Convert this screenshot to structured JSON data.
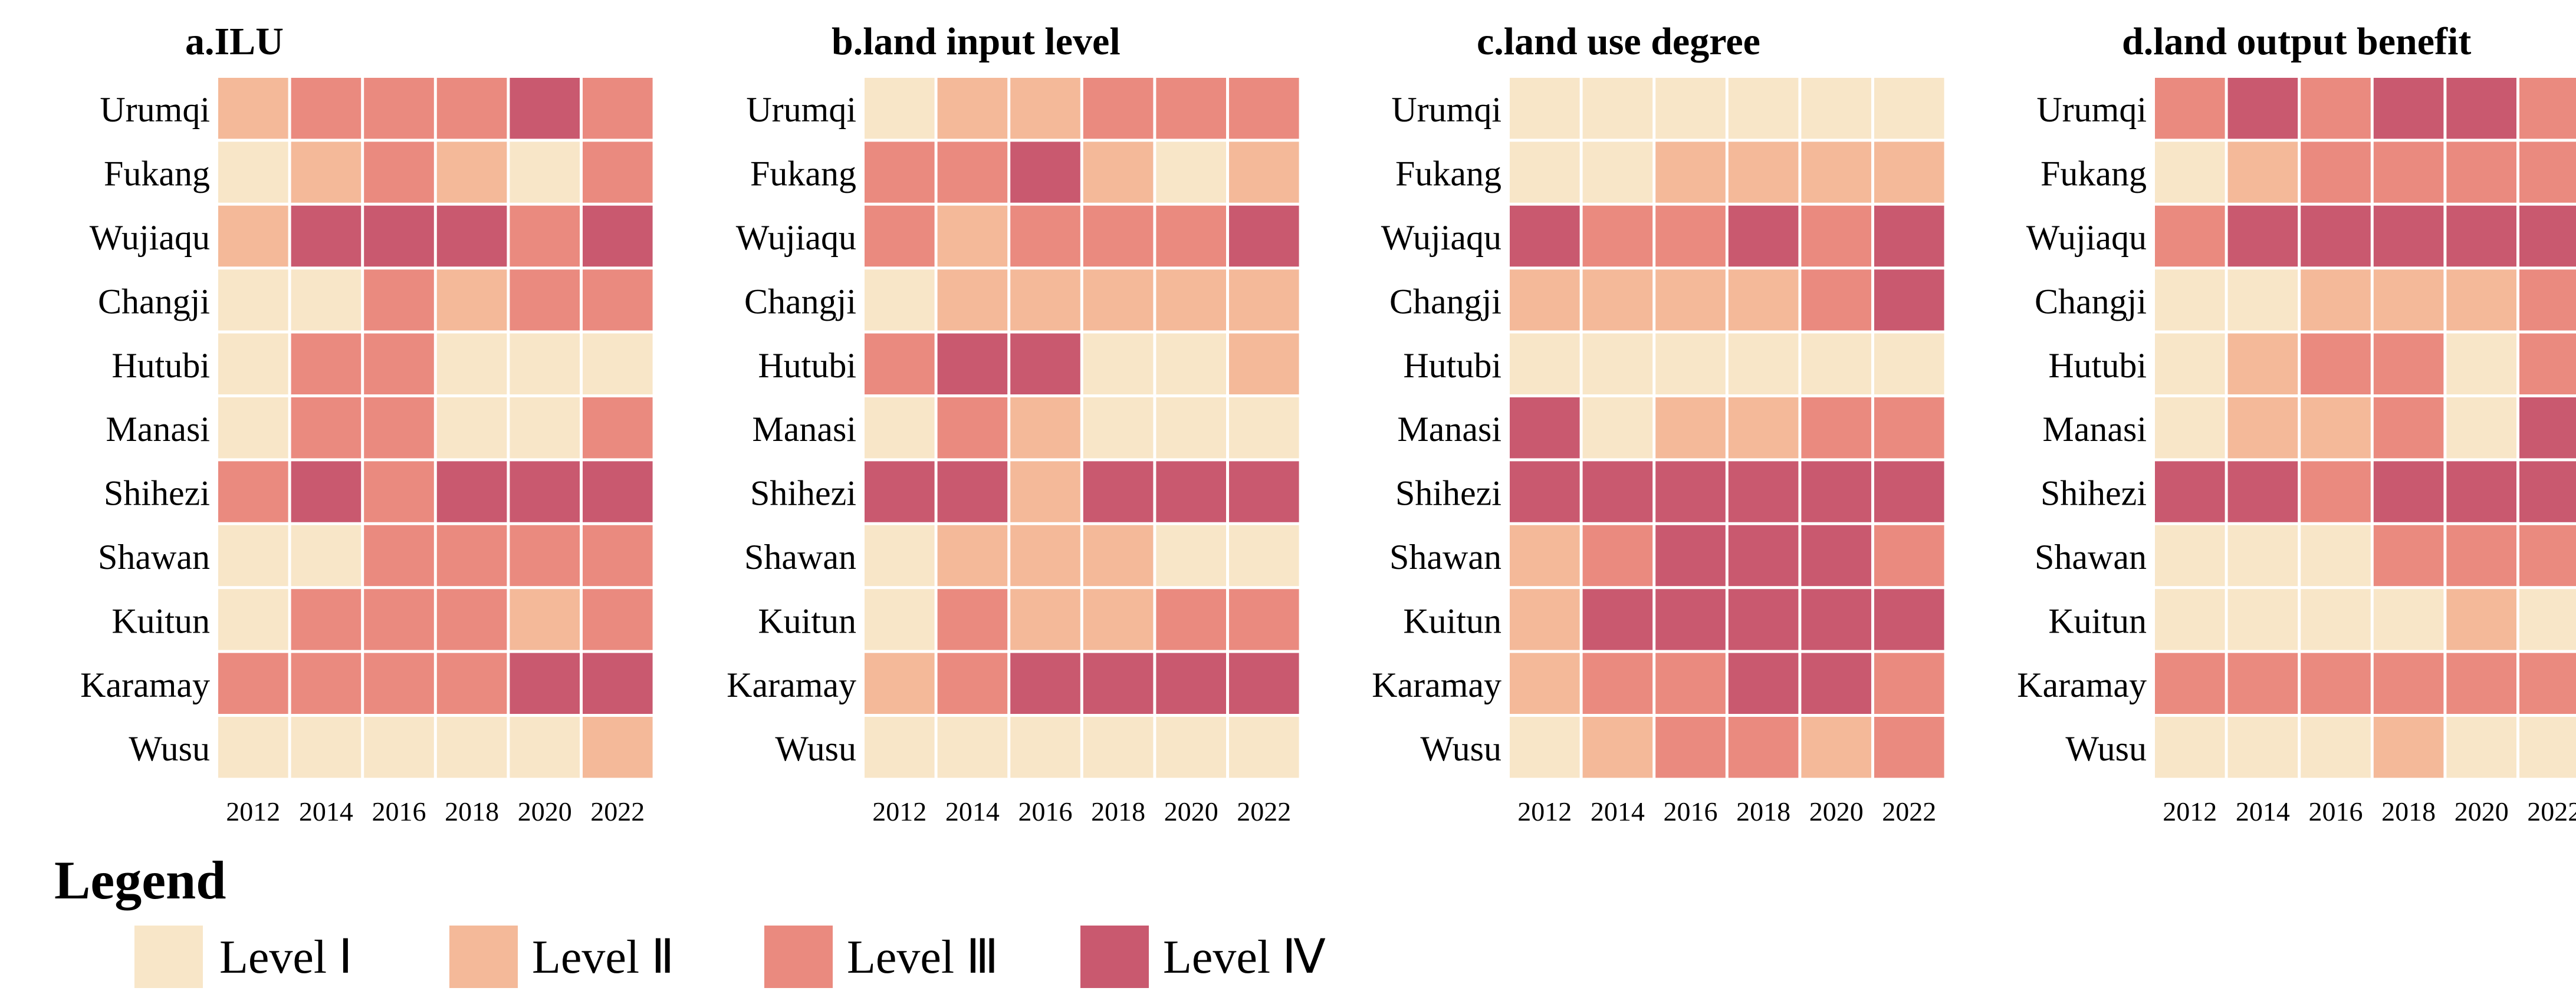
{
  "chart_data": {
    "type": "heatmap",
    "cities": [
      "Urumqi",
      "Fukang",
      "Wujiaqu",
      "Changji",
      "Hutubi",
      "Manasi",
      "Shihezi",
      "Shawan",
      "Kuitun",
      "Karamay",
      "Wusu"
    ],
    "years": [
      "2012",
      "2014",
      "2016",
      "2018",
      "2020",
      "2022"
    ],
    "level_colors": [
      "#f8e6c8",
      "#f4b999",
      "#ea8a7f",
      "#c9596f"
    ],
    "panels": [
      {
        "title": "a.ILU",
        "levels": [
          [
            2,
            3,
            3,
            3,
            4,
            3
          ],
          [
            1,
            2,
            3,
            2,
            1,
            3
          ],
          [
            2,
            4,
            4,
            4,
            3,
            4
          ],
          [
            1,
            1,
            3,
            2,
            3,
            3
          ],
          [
            1,
            3,
            3,
            1,
            1,
            1
          ],
          [
            1,
            3,
            3,
            1,
            1,
            3
          ],
          [
            3,
            4,
            3,
            4,
            4,
            4
          ],
          [
            1,
            1,
            3,
            3,
            3,
            3
          ],
          [
            1,
            3,
            3,
            3,
            2,
            3
          ],
          [
            3,
            3,
            3,
            3,
            4,
            4
          ],
          [
            1,
            1,
            1,
            1,
            1,
            2
          ]
        ]
      },
      {
        "title": "b.land input level",
        "levels": [
          [
            1,
            2,
            2,
            3,
            3,
            3
          ],
          [
            3,
            3,
            4,
            2,
            1,
            2
          ],
          [
            3,
            2,
            3,
            3,
            3,
            4
          ],
          [
            1,
            2,
            2,
            2,
            2,
            2
          ],
          [
            3,
            4,
            4,
            1,
            1,
            2
          ],
          [
            1,
            3,
            2,
            1,
            1,
            1
          ],
          [
            4,
            4,
            2,
            4,
            4,
            4
          ],
          [
            1,
            2,
            2,
            2,
            1,
            1
          ],
          [
            1,
            3,
            2,
            2,
            3,
            3
          ],
          [
            2,
            3,
            4,
            4,
            4,
            4
          ],
          [
            1,
            1,
            1,
            1,
            1,
            1
          ]
        ]
      },
      {
        "title": "c.land use degree",
        "levels": [
          [
            1,
            1,
            1,
            1,
            1,
            1
          ],
          [
            1,
            1,
            2,
            2,
            2,
            2
          ],
          [
            4,
            3,
            3,
            4,
            3,
            4
          ],
          [
            2,
            2,
            2,
            2,
            3,
            4
          ],
          [
            1,
            1,
            1,
            1,
            1,
            1
          ],
          [
            4,
            1,
            2,
            2,
            3,
            3
          ],
          [
            4,
            4,
            4,
            4,
            4,
            4
          ],
          [
            2,
            3,
            4,
            4,
            4,
            3
          ],
          [
            2,
            4,
            4,
            4,
            4,
            4
          ],
          [
            2,
            3,
            3,
            4,
            4,
            3
          ],
          [
            1,
            2,
            3,
            3,
            2,
            3
          ]
        ]
      },
      {
        "title": "d.land output benefit",
        "levels": [
          [
            3,
            4,
            3,
            4,
            4,
            3
          ],
          [
            1,
            2,
            3,
            3,
            3,
            3
          ],
          [
            3,
            4,
            4,
            4,
            4,
            4
          ],
          [
            1,
            1,
            2,
            2,
            2,
            3
          ],
          [
            1,
            2,
            3,
            3,
            1,
            3
          ],
          [
            1,
            2,
            2,
            3,
            1,
            4
          ],
          [
            4,
            4,
            3,
            4,
            4,
            4
          ],
          [
            1,
            1,
            1,
            3,
            3,
            3
          ],
          [
            1,
            1,
            1,
            1,
            2,
            1
          ],
          [
            3,
            3,
            3,
            3,
            3,
            3
          ],
          [
            1,
            1,
            1,
            2,
            1,
            1
          ]
        ]
      }
    ]
  },
  "legend": {
    "title": "Legend",
    "items": [
      "Level Ⅰ",
      "Level Ⅱ",
      "Level Ⅲ",
      "Level Ⅳ"
    ]
  }
}
